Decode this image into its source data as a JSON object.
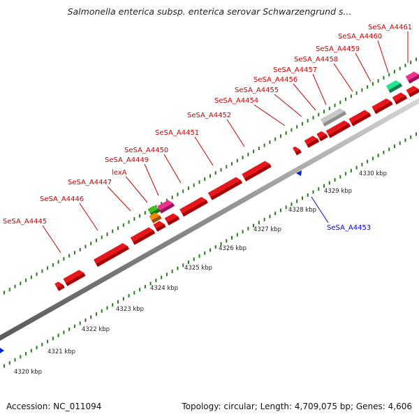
{
  "title": "Salmonella enterica subsp. enterica serovar Schwarzengrund s...",
  "footer": {
    "accession": "Accession: NC_011094",
    "topology": "Topology: circular; Length: 4,709,075 bp; Genes: 4,606"
  },
  "colors": {
    "gene_default": "#e8161a",
    "gene_dark": "#a80000",
    "label_forward": "#cc0000",
    "label_reverse": "#0000cc",
    "reverse_marker": "#0020cc",
    "tick": "#2a7d1f",
    "backbone": "#8c8c8c",
    "hypothetical": "#f0308c",
    "rna": "#20e890",
    "grey_gene": "#c8c8c8",
    "lexA_green": "#40c020",
    "lexA_orange": "#f08c00"
  },
  "scale": {
    "unit": "kbp",
    "labels": [
      "4320 kbp",
      "4321 kbp",
      "4322 kbp",
      "4323 kbp",
      "4324 kbp",
      "4325 kbp",
      "4326 kbp",
      "4327 kbp",
      "4328 kbp",
      "4329 kbp",
      "4330 kbp"
    ]
  },
  "genes_forward": [
    {
      "label": "SeSA_A4445"
    },
    {
      "label": "SeSA_A4446"
    },
    {
      "label": "SeSA_A4447"
    },
    {
      "label": "lexA"
    },
    {
      "label": "SeSA_A4449"
    },
    {
      "label": "SeSA_A4450"
    },
    {
      "label": "SeSA_A4451"
    },
    {
      "label": "SeSA_A4452"
    },
    {
      "label": "SeSA_A4454"
    },
    {
      "label": "SeSA_A4455"
    },
    {
      "label": "SeSA_A4456"
    },
    {
      "label": "SeSA_A4457"
    },
    {
      "label": "SeSA_A4458"
    },
    {
      "label": "SeSA_A4459"
    },
    {
      "label": "SeSA_A4460"
    },
    {
      "label": "SeSA_A4461"
    }
  ],
  "genes_reverse": [
    {
      "label": "SeSA_A4453"
    }
  ]
}
